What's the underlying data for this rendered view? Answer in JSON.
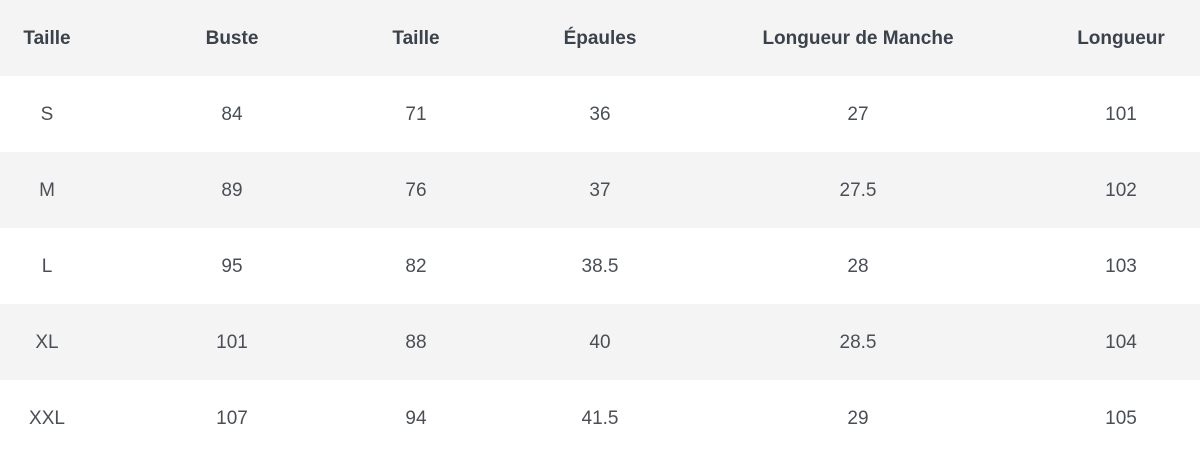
{
  "table": {
    "name": "size-chart",
    "columns": [
      "Taille",
      "Buste",
      "Taille",
      "Épaules",
      "Longueur de Manche",
      "Longueur"
    ],
    "rows": [
      [
        "S",
        "84",
        "71",
        "36",
        "27",
        "101"
      ],
      [
        "M",
        "89",
        "76",
        "37",
        "27.5",
        "102"
      ],
      [
        "L",
        "95",
        "82",
        "38.5",
        "28",
        "103"
      ],
      [
        "XL",
        "101",
        "88",
        "40",
        "28.5",
        "104"
      ],
      [
        "XXL",
        "107",
        "94",
        "41.5",
        "29",
        "105"
      ]
    ]
  },
  "colors": {
    "stripe_background": "#f4f4f4",
    "row_background": "#ffffff",
    "header_text": "#3b424b",
    "body_text": "#4a4f56"
  }
}
